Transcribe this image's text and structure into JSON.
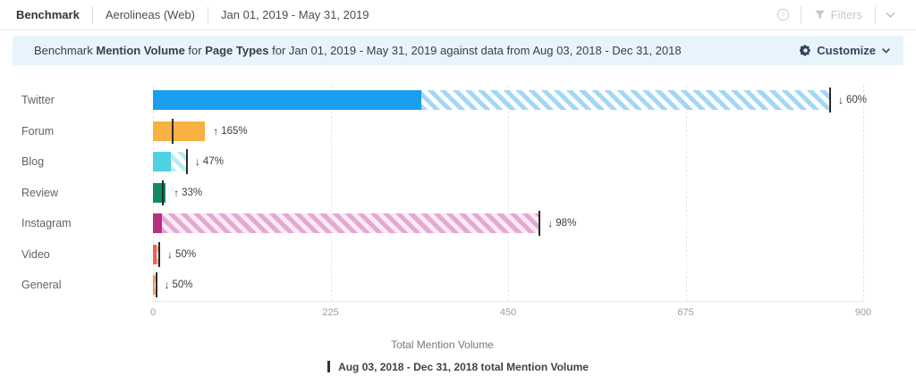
{
  "header": {
    "module": "Benchmark",
    "source": "Aerolineas (Web)",
    "date_range": "Jan 01, 2019 - May 31, 2019",
    "filters_label": "Filters"
  },
  "banner": {
    "prefix": "Benchmark ",
    "metric": "Mention Volume",
    "mid": " for ",
    "dimension": "Page Types",
    "suffix": " for Jan 01, 2019 - May 31, 2019 against data from Aug 03, 2018 - Dec 31, 2018",
    "customize_label": "Customize"
  },
  "chart_data": {
    "type": "bar",
    "orientation": "horizontal",
    "xlabel": "Total Mention Volume",
    "xlim": [
      0,
      900
    ],
    "x_ticks": [
      0,
      225,
      450,
      675,
      900
    ],
    "grid": "vertical-dashed",
    "categories": [
      "Twitter",
      "Forum",
      "Blog",
      "Review",
      "Instagram",
      "Video",
      "General"
    ],
    "series": [
      {
        "name": "Jan 01, 2019 - May 31, 2019 Mention Volume",
        "values": [
          340,
          66,
          23,
          16,
          11,
          4,
          2
        ]
      },
      {
        "name": "Aug 03, 2018 - Dec 31, 2018 total Mention Volume",
        "values": [
          858,
          25,
          43,
          12,
          490,
          8,
          4
        ]
      }
    ],
    "changes": [
      {
        "dir": "down",
        "label": "60%"
      },
      {
        "dir": "up",
        "label": "165%"
      },
      {
        "dir": "down",
        "label": "47%"
      },
      {
        "dir": "up",
        "label": "33%"
      },
      {
        "dir": "down",
        "label": "98%"
      },
      {
        "dir": "down",
        "label": "50%"
      },
      {
        "dir": "down",
        "label": "50%"
      }
    ],
    "colors": [
      {
        "solid": "#199fee",
        "stripe": "#a3d7f4",
        "stripe_bg": "#ffffff"
      },
      {
        "solid": "#fbb042",
        "stripe": "#fcd79c",
        "stripe_bg": "#ffffff"
      },
      {
        "solid": "#4ed1e1",
        "stripe": "#b9ecf3",
        "stripe_bg": "#ffffff"
      },
      {
        "solid": "#108a64",
        "stripe": "#9fd4c2",
        "stripe_bg": "#ffffff"
      },
      {
        "solid": "#b92d87",
        "stripe": "#e5a8d2",
        "stripe_bg": "#faeaf4"
      },
      {
        "solid": "#f4614d",
        "stripe": "#f9b4ab",
        "stripe_bg": "#ffffff"
      },
      {
        "solid": "#f0944a",
        "stripe": "#f8cda4",
        "stripe_bg": "#ffffff"
      }
    ],
    "legend": [
      {
        "marker": "vertical-bar",
        "label": "Aug 03, 2018 - Dec 31, 2018 total Mention Volume"
      }
    ],
    "arrows": {
      "up": "↑",
      "down": "↓"
    }
  }
}
